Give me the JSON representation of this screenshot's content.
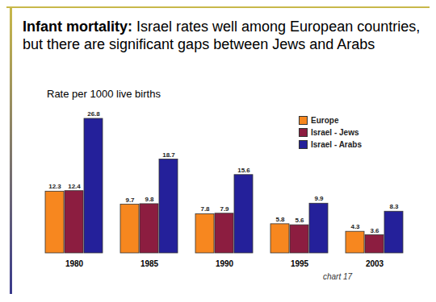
{
  "chart_data": {
    "type": "bar",
    "title": "Infant mortality: Israel rates well among European countries, but there are significant gaps between Jews and Arabs",
    "subtitle": "Rate per 1000 live births",
    "caption": "chart 17",
    "categories": [
      "1980",
      "1985",
      "1990",
      "1995",
      "2003"
    ],
    "series": [
      {
        "name": "Europe",
        "color": "#f7871f",
        "values": [
          12.3,
          9.7,
          7.8,
          5.8,
          4.3
        ]
      },
      {
        "name": "Israel - Jews",
        "color": "#8c1d40",
        "values": [
          12.4,
          9.8,
          7.9,
          5.6,
          3.6
        ]
      },
      {
        "name": "Israel - Arabs",
        "color": "#24209a",
        "values": [
          26.8,
          18.7,
          15.6,
          9.9,
          8.3
        ]
      }
    ],
    "legend": "top-right",
    "data_labels": true,
    "tick_labels": "x",
    "grid": false
  }
}
